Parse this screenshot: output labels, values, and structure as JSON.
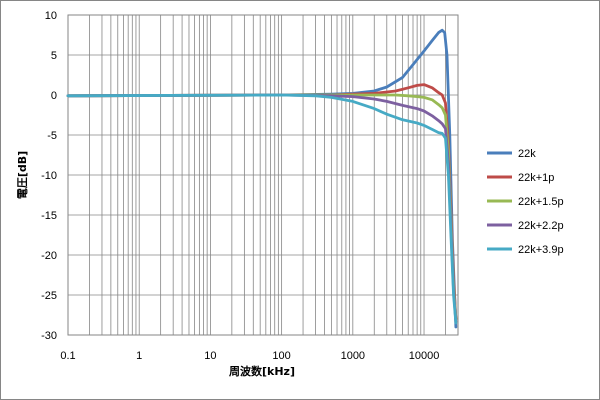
{
  "chart_data": {
    "type": "line",
    "title": "",
    "xlabel": "周波数[kHz]",
    "ylabel": "電圧[dB]",
    "x_scale": "log",
    "xlim": [
      0.1,
      30000
    ],
    "ylim": [
      -30,
      10
    ],
    "x_ticks": [
      "0.1",
      "1",
      "10",
      "100",
      "1000",
      "10000"
    ],
    "y_ticks": [
      "10",
      "5",
      "0",
      "-5",
      "-10",
      "-15",
      "-20",
      "-25",
      "-30"
    ],
    "grid": "on",
    "legend_position": "right",
    "series": [
      {
        "name": "22k",
        "color": "#4a7ebb",
        "x": [
          0.1,
          100,
          500,
          1000,
          2000,
          3000,
          5000,
          7000,
          10000,
          13000,
          16000,
          18000,
          19500,
          21000,
          23000,
          25000,
          28000
        ],
        "y": [
          -0.1,
          0,
          0.1,
          0.2,
          0.5,
          1.0,
          2.2,
          3.8,
          5.5,
          6.8,
          7.8,
          8.1,
          7.8,
          5.0,
          -5.0,
          -18.0,
          -29.0
        ]
      },
      {
        "name": "22k+1p",
        "color": "#be4b48",
        "x": [
          0.1,
          100,
          500,
          1000,
          2000,
          4000,
          6000,
          8000,
          10000,
          13000,
          16000,
          18000,
          20000,
          22000,
          24000,
          26000,
          28000
        ],
        "y": [
          -0.1,
          0,
          0,
          0.1,
          0.2,
          0.5,
          0.9,
          1.2,
          1.3,
          0.9,
          0.3,
          0,
          -1.0,
          -6.0,
          -15.0,
          -23.0,
          -28.0
        ]
      },
      {
        "name": "22k+1.5p",
        "color": "#98b954",
        "x": [
          0.1,
          100,
          500,
          1000,
          2000,
          4000,
          6000,
          8000,
          10000,
          13000,
          16000,
          18000,
          20000,
          22000,
          24000,
          26000,
          28000
        ],
        "y": [
          -0.1,
          0,
          0,
          0,
          0,
          0,
          -0.1,
          -0.2,
          -0.3,
          -0.6,
          -1.2,
          -1.6,
          -2.5,
          -7.0,
          -16.0,
          -24.0,
          -28.0
        ]
      },
      {
        "name": "22k+2.2p",
        "color": "#7d60a0",
        "x": [
          0.1,
          100,
          500,
          1000,
          2000,
          3000,
          5000,
          8000,
          10000,
          13000,
          16000,
          18000,
          20000,
          22000,
          24000,
          26000,
          28000
        ],
        "y": [
          -0.1,
          0,
          -0.1,
          -0.2,
          -0.5,
          -0.8,
          -1.3,
          -1.7,
          -2.0,
          -2.6,
          -3.2,
          -3.6,
          -4.2,
          -8.5,
          -17.0,
          -24.5,
          -28.3
        ]
      },
      {
        "name": "22k+3.9p",
        "color": "#46aac5",
        "x": [
          0.1,
          100,
          300,
          500,
          1000,
          2000,
          3000,
          5000,
          8000,
          10000,
          13000,
          16000,
          18000,
          20000,
          22000,
          24000,
          26000,
          28000
        ],
        "y": [
          -0.1,
          0,
          -0.1,
          -0.3,
          -0.8,
          -1.7,
          -2.4,
          -3.1,
          -3.5,
          -3.8,
          -4.3,
          -4.7,
          -4.8,
          -5.4,
          -10.0,
          -18.0,
          -25.0,
          -28.5
        ]
      }
    ]
  }
}
